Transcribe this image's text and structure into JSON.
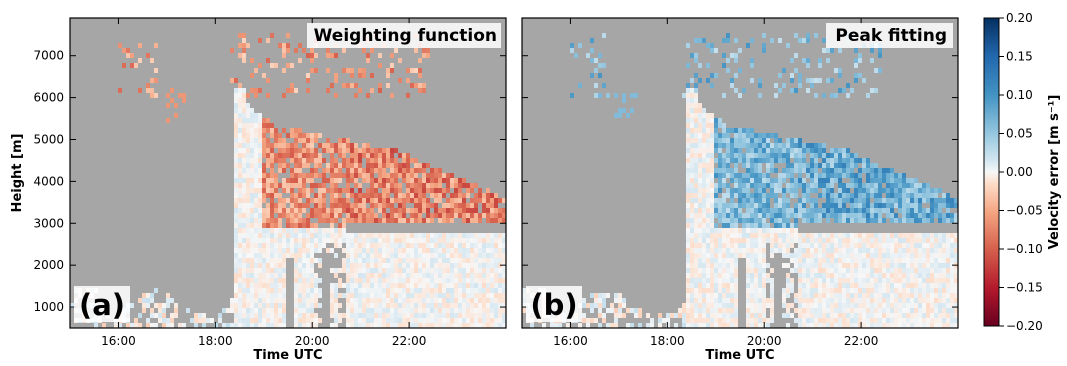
{
  "chart_data": {
    "type": "heatmap",
    "xlabel": "Time UTC",
    "ylabel": "Height [m]",
    "x_ticks": [
      "16:00",
      "18:00",
      "20:00",
      "22:00"
    ],
    "y_ticks": [
      "1000",
      "2000",
      "3000",
      "4000",
      "5000",
      "6000",
      "7000"
    ],
    "xlim_hours": [
      15.0,
      24.0
    ],
    "ylim": [
      500,
      7900
    ],
    "panels": [
      {
        "letter": "(a)",
        "title": "Weighting function",
        "bias": -1
      },
      {
        "letter": "(b)",
        "title": "Peak fitting",
        "bias": 1
      }
    ],
    "colorbar": {
      "label": "Velocity error [m s⁻¹]",
      "ticks": [
        "0.20",
        "0.15",
        "0.10",
        "0.05",
        "0.00",
        "−0.05",
        "−0.10",
        "−0.15",
        "−0.20"
      ],
      "range": [
        -0.2,
        0.2
      ],
      "colormap": "RdBu",
      "missing_color": "#a6a6a6"
    }
  }
}
